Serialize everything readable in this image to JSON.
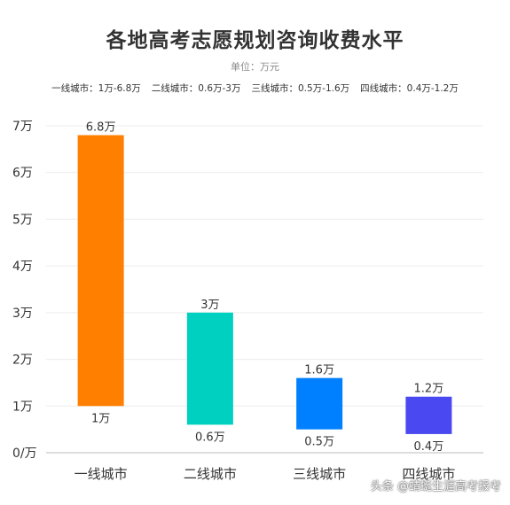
{
  "header": {
    "title": "各地高考志愿规划咨询收费水平",
    "unit": "单位：万元",
    "ranges": [
      "一线城市：1万-6.8万",
      "二线城市：0.6万-3万",
      "三线城市：0.5万-1.6万",
      "四线城市：0.4万-1.2万"
    ]
  },
  "watermark": "头条 @蜻蜓生涯高考报考",
  "chart_data": {
    "type": "bar",
    "categories": [
      "一线城市",
      "二线城市",
      "三线城市",
      "四线城市"
    ],
    "series": [
      {
        "low": 1,
        "high": 6.8,
        "low_label": "1万",
        "high_label": "6.8万"
      },
      {
        "low": 0.6,
        "high": 3,
        "low_label": "0.6万",
        "high_label": "3万"
      },
      {
        "low": 0.5,
        "high": 1.6,
        "low_label": "0.5万",
        "high_label": "1.6万"
      },
      {
        "low": 0.4,
        "high": 1.2,
        "low_label": "0.4万",
        "high_label": "1.2万"
      }
    ],
    "colors": [
      "#ff7f00",
      "#00d0c0",
      "#0080ff",
      "#4a48f0"
    ],
    "ylim": [
      0,
      7
    ],
    "yticks": [
      "0/万",
      "1万",
      "2万",
      "3万",
      "4万",
      "5万",
      "6万",
      "7万"
    ],
    "grid": true
  }
}
